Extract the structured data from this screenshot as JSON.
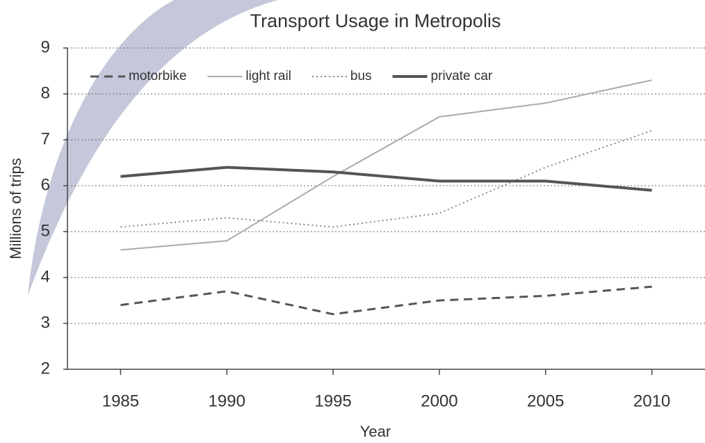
{
  "chart_data": {
    "type": "line",
    "title": "Transport Usage in Metropolis",
    "x_label": "Year",
    "y_label": "Millions of trips",
    "x": [
      1985,
      1990,
      1995,
      2000,
      2005,
      2010
    ],
    "xlim": [
      1982.5,
      2012.5
    ],
    "xticks": [
      1985,
      1990,
      1995,
      2000,
      2005,
      2010
    ],
    "ylim": [
      2,
      9
    ],
    "yticks": [
      2,
      3,
      4,
      5,
      6,
      7,
      8,
      9
    ],
    "grid": true,
    "legend": "top-left",
    "series": [
      {
        "name": "motorbike",
        "color": "#555555",
        "dash": "dashed",
        "values": [
          3.4,
          3.7,
          3.2,
          3.5,
          3.6,
          3.8
        ]
      },
      {
        "name": "light rail",
        "color": "#aaaaaa",
        "dash": "solid",
        "values": [
          4.6,
          4.8,
          6.2,
          7.5,
          7.8,
          8.3
        ]
      },
      {
        "name": "bus",
        "color": "#888888",
        "dash": "dotted",
        "values": [
          5.1,
          5.3,
          5.1,
          5.4,
          6.4,
          7.2
        ]
      },
      {
        "name": "private car",
        "color": "#555555",
        "dash": "thick",
        "values": [
          6.2,
          6.4,
          6.3,
          6.1,
          6.1,
          5.9
        ]
      }
    ]
  }
}
